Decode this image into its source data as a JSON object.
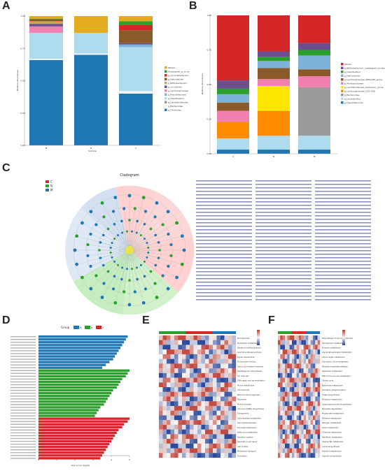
{
  "panel_letters": {
    "a": "A",
    "b": "B",
    "c": "C",
    "d": "D",
    "e": "E",
    "f": "F"
  },
  "colors": {
    "a": [
      "#1f77b4",
      "#f4f4f4",
      "#9a9a9a",
      "#aedcee",
      "#7fb2d9",
      "#f17fb0",
      "#6b4f8f",
      "#c8a85a",
      "#8b5a2b",
      "#d62728",
      "#2ca02c",
      "#e5aa20"
    ],
    "b": [
      "#1f77b4",
      "#aedcee",
      "#9a9a9a",
      "#ff8c00",
      "#ffe600",
      "#f17fb0",
      "#8b5a2b",
      "#7fb2d9",
      "#2ca02c",
      "#6b4f8f",
      "#d62728"
    ],
    "d": {
      "M": "#1f77b4",
      "N": "#2ca02c",
      "C": "#d62728"
    }
  },
  "chart_data": [
    {
      "panel": "A",
      "type": "bar",
      "stacked": true,
      "ylabel": "Relative Abundance",
      "xlabel": "Sample",
      "ylim": [
        0,
        1
      ],
      "yticks": [
        "0.00",
        "0.25",
        "0.50",
        "0.75",
        "1.00"
      ],
      "categories": [
        "M",
        "N",
        "C"
      ],
      "legend": [
        "Others",
        "Unassigned_g_unclassified",
        "g_Corynebacterium",
        "g_Helicobacter",
        "g_Bifidobacterium",
        "g_uncultured",
        "g_Lachnospiraceae",
        "g_Prevotellaceae",
        "g_Desulfovibrio",
        "g_Lactobacillaceae",
        "g_Bacteroides",
        "g_Firmicutes"
      ],
      "series": [
        {
          "values": [
            0.66,
            0.7,
            0.4
          ]
        },
        {
          "values": [
            0.01,
            0.01,
            0.02
          ]
        },
        {
          "values": [
            0.0,
            0.0,
            0.0
          ]
        },
        {
          "values": [
            0.2,
            0.16,
            0.34
          ]
        },
        {
          "values": [
            0.0,
            0.0,
            0.02
          ]
        },
        {
          "values": [
            0.05,
            0.0,
            0.0
          ]
        },
        {
          "values": [
            0.02,
            0.0,
            0.01
          ]
        },
        {
          "values": [
            0.02,
            0.0,
            0.0
          ]
        },
        {
          "values": [
            0.0,
            0.0,
            0.1
          ]
        },
        {
          "values": [
            0.01,
            0.0,
            0.04
          ]
        },
        {
          "values": [
            0.01,
            0.0,
            0.03
          ]
        },
        {
          "values": [
            0.02,
            0.13,
            0.04
          ]
        }
      ]
    },
    {
      "panel": "B",
      "type": "bar",
      "stacked": true,
      "ylabel": "Relative Abundance",
      "xlabel": "Sample",
      "ylim": [
        0,
        1
      ],
      "yticks": [
        "0.00",
        "0.25",
        "0.50",
        "0.75",
        "1.00"
      ],
      "categories": [
        "C",
        "N",
        "M"
      ],
      "legend": [
        "Others",
        "g_Bifidobacterium_unassigned_unclassified",
        "g_Desulfovibrio",
        "g_Helicobacter",
        "g_Lachnospiraceae_NK4A136_group",
        "g_Muribaculaceae",
        "g_Lactobacillaceae_bacterium_group",
        "g_Lachnospiraceae_UCG-006",
        "g_Bacteroides",
        "g_Lactobacillus",
        "g_Faecalibaculum"
      ],
      "series": [
        {
          "values": [
            0.03,
            0.03,
            0.03
          ]
        },
        {
          "values": [
            0.08,
            0.1,
            0.1
          ]
        },
        {
          "values": [
            0.0,
            0.0,
            0.35
          ]
        },
        {
          "values": [
            0.12,
            0.18,
            0.0
          ]
        },
        {
          "values": [
            0.0,
            0.18,
            0.0
          ]
        },
        {
          "values": [
            0.08,
            0.05,
            0.08
          ]
        },
        {
          "values": [
            0.06,
            0.08,
            0.05
          ]
        },
        {
          "values": [
            0.06,
            0.05,
            0.1
          ]
        },
        {
          "values": [
            0.04,
            0.03,
            0.04
          ]
        },
        {
          "values": [
            0.06,
            0.04,
            0.05
          ]
        },
        {
          "values": [
            0.47,
            0.26,
            0.2
          ]
        }
      ]
    },
    {
      "panel": "D",
      "type": "bar",
      "orientation": "horizontal",
      "title": "Group",
      "xlabel": "LDA score (log10)",
      "xlim": [
        0,
        5
      ],
      "xticks": [
        "0",
        "1",
        "2",
        "3",
        "4",
        "5"
      ],
      "groups": [
        "M",
        "N",
        "C"
      ],
      "series": [
        {
          "name": "M",
          "values": [
            4.9,
            4.8,
            4.7,
            4.6,
            4.5,
            4.4,
            4.3,
            4.2,
            4.1,
            3.9,
            3.7,
            3.5
          ]
        },
        {
          "name": "N",
          "values": [
            5.0,
            4.9,
            4.8,
            4.6,
            4.5,
            4.4,
            4.3,
            4.1,
            4.0,
            3.9,
            3.8,
            3.7,
            3.6,
            3.4,
            3.3,
            3.2,
            3.1
          ]
        },
        {
          "name": "C",
          "values": [
            5.0,
            4.9,
            4.7,
            4.6,
            4.4,
            4.3,
            4.2,
            4.1,
            4.0,
            3.9,
            3.8,
            3.7,
            3.6,
            3.5,
            3.4
          ]
        }
      ]
    },
    {
      "panel": "E",
      "type": "heatmap",
      "rows": 26,
      "cols": 20,
      "row_labels": [
        "Microsporidia",
        "Nucleotide metabolism",
        "Bacterial motility proteins",
        "Lipid biosynthesis proteins",
        "Signal transduction",
        "Transcription factors",
        "Amino acid related enzymes",
        "Peptidoglycan biosynthesis",
        "Ion channels",
        "DNA repair and recombination",
        "Purine metabolism",
        "Chromosome",
        "Mitochondrial biogenesis",
        "Ribosome",
        "Protein kinases",
        "Aminoacyl-tRNA biosynthesis",
        "Transporters",
        "Carbohydrate metabolism",
        "Glycosyltransferases",
        "Pyruvate metabolism",
        "Fatty acid metabolism",
        "Secretion system",
        "Replication and repair",
        "Cell motility",
        "Membrane transport",
        "Translation"
      ]
    },
    {
      "panel": "F",
      "type": "heatmap",
      "rows": 26,
      "cols": 18,
      "row_labels": [
        "Biosynthesis of various antibiotics",
        "Sphingolipid metabolism",
        "Tyrosine metabolism",
        "Glycerophospholipid metabolism",
        "Amino sugar metabolism",
        "Glycolysis / Gluconeogenesis",
        "Pentose phosphate pathway",
        "Galactose metabolism",
        "Starch and sucrose metabolism",
        "Citrate cycle",
        "Butanoate metabolism",
        "Oxidative phosphorylation",
        "Folate biosynthesis",
        "Porphyrin metabolism",
        "Lipopolysaccharide biosynthesis",
        "Benzoate degradation",
        "Propanoate metabolism",
        "Methane metabolism",
        "Nitrogen metabolism",
        "Sulfur metabolism",
        "Thiamine metabolism",
        "Riboflavin metabolism",
        "Vitamin B6 metabolism",
        "Lysine biosynthesis",
        "Histidine metabolism",
        "Arginine biosynthesis"
      ]
    }
  ]
}
